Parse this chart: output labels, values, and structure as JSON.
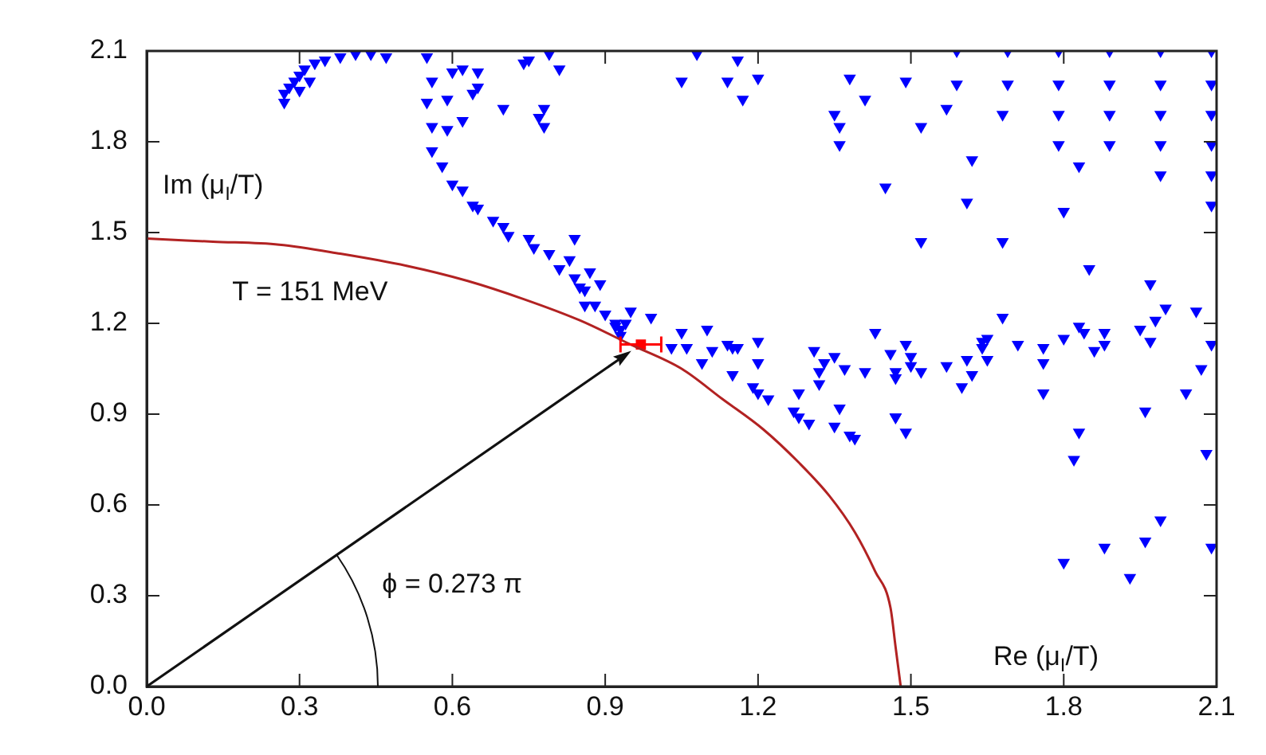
{
  "chart_data": {
    "type": "scatter",
    "xlabel": "Re (μ$_{I}$/T)",
    "ylabel": "Im (μ$_{I}$/T)",
    "annotations": [
      "T = 151 MeV",
      "ϕ = 0.273 π"
    ],
    "xlim": [
      0,
      2.1
    ],
    "ylim": [
      0,
      2.1
    ],
    "xticks": [
      {
        "value": 0,
        "label": "0.0"
      },
      0.3,
      0.6,
      0.9,
      1.2,
      1.5,
      1.8,
      2.1
    ],
    "yticks": [
      {
        "value": 0,
        "label": "0.0"
      },
      0.3,
      0.6,
      0.9,
      1.2,
      1.5,
      1.8,
      2.1
    ],
    "grid": false,
    "legend": false,
    "series": [
      {
        "type": "line",
        "color": "#b22222",
        "marker": "none",
        "x": [
          0,
          0.13,
          0.26,
          0.38,
          0.51,
          0.63,
          0.74,
          0.85,
          0.95,
          1.05,
          1.13,
          1.21,
          1.28,
          1.34,
          1.39,
          1.43,
          1.46,
          1.47,
          1.48
        ],
        "values": [
          1.48,
          1.47,
          1.46,
          1.43,
          1.39,
          1.34,
          1.28,
          1.21,
          1.13,
          1.05,
          0.95,
          0.85,
          0.74,
          0.63,
          0.51,
          0.38,
          0.26,
          0.13,
          0
        ]
      },
      {
        "type": "scatter",
        "color": "#0000ff",
        "marker": "triangle",
        "x": [
          0.27,
          0.28,
          0.29,
          0.3,
          0.31,
          0.33,
          0.35,
          0.38,
          0.41,
          0.44,
          0.47,
          0.27,
          0.3,
          0.32,
          0.55,
          0.56,
          0.55,
          0.56,
          0.56,
          0.58,
          0.6,
          0.62,
          0.64,
          0.65,
          0.68,
          0.7,
          0.71,
          0.75,
          0.76,
          0.79,
          0.81,
          0.84,
          0.86,
          0.88,
          0.9,
          0.92,
          0.93,
          0.6,
          0.65,
          0.62,
          0.59,
          0.64,
          0.7,
          0.59,
          0.74,
          0.65,
          0.62,
          0.75,
          0.79,
          0.81,
          0.78,
          0.78,
          0.77,
          1.05,
          1.08,
          1.14,
          1.16,
          1.17,
          1.2,
          1.38,
          1.41,
          1.35,
          1.36,
          1.36,
          1.45,
          1.49,
          0.84,
          0.83,
          0.87,
          0.89,
          0.85,
          0.86,
          0.95,
          0.99,
          1.59,
          1.69,
          1.79,
          1.89,
          1.99,
          2.09,
          1.59,
          1.69,
          1.79,
          1.89,
          1.99,
          2.09,
          1.68,
          1.79,
          1.89,
          1.99,
          2.09,
          1.57,
          1.52,
          1.79,
          1.89,
          1.99,
          2.09,
          1.62,
          1.83,
          1.99,
          2.09,
          1.61,
          1.8,
          2.09,
          1.52,
          1.68,
          1.85,
          1.97,
          2.0,
          2.06,
          1.68,
          1.49,
          1.5,
          1.5,
          1.47,
          1.52,
          1.57,
          1.61,
          1.62,
          1.6,
          1.64,
          1.65,
          1.64,
          1.65,
          1.71,
          1.76,
          1.76,
          1.76,
          1.8,
          1.83,
          1.84,
          1.88,
          1.86,
          1.88,
          1.95,
          1.98,
          1.97,
          2.09,
          2.07,
          2.04,
          1.96,
          1.49,
          1.47,
          1.83,
          1.82,
          2.08,
          1.99,
          1.96,
          1.88,
          1.8,
          1.93,
          2.09,
          0.92,
          0.94,
          0.93,
          1.03,
          1.05,
          1.06,
          1.1,
          1.09,
          1.11,
          1.14,
          1.15,
          1.16,
          1.2,
          1.15,
          1.2,
          1.19,
          1.2,
          1.22,
          1.28,
          1.27,
          1.28,
          1.3,
          1.31,
          1.32,
          1.32,
          1.33,
          1.35,
          1.37,
          1.36,
          1.35,
          1.38,
          1.39,
          1.41,
          1.43,
          1.46,
          1.47,
          1.47
        ],
        "values": [
          1.96,
          1.98,
          2.0,
          2.02,
          2.04,
          2.06,
          2.07,
          2.08,
          2.09,
          2.09,
          2.08,
          1.93,
          1.97,
          2.0,
          2.08,
          2.0,
          1.93,
          1.85,
          1.77,
          1.72,
          1.66,
          1.64,
          1.59,
          1.58,
          1.54,
          1.52,
          1.49,
          1.48,
          1.45,
          1.43,
          1.38,
          1.35,
          1.31,
          1.26,
          1.23,
          1.19,
          1.16,
          2.03,
          1.98,
          1.87,
          1.94,
          1.96,
          1.91,
          1.84,
          2.06,
          2.03,
          2.04,
          2.07,
          2.09,
          2.04,
          1.91,
          1.85,
          1.88,
          2.0,
          2.09,
          2.0,
          2.07,
          1.94,
          2.01,
          2.01,
          1.94,
          1.89,
          1.85,
          1.79,
          1.65,
          2.0,
          1.48,
          1.41,
          1.37,
          1.33,
          1.32,
          1.26,
          1.24,
          1.22,
          2.1,
          2.1,
          2.1,
          2.1,
          2.1,
          2.1,
          1.99,
          1.99,
          1.99,
          1.99,
          1.99,
          1.99,
          1.89,
          1.89,
          1.89,
          1.89,
          1.89,
          1.91,
          1.85,
          1.79,
          1.79,
          1.79,
          1.79,
          1.74,
          1.72,
          1.69,
          1.69,
          1.6,
          1.57,
          1.59,
          1.47,
          1.47,
          1.38,
          1.33,
          1.25,
          1.24,
          1.22,
          1.13,
          1.09,
          1.06,
          1.02,
          1.04,
          1.06,
          1.08,
          1.03,
          0.99,
          1.14,
          1.15,
          1.12,
          1.08,
          1.13,
          1.12,
          1.07,
          0.97,
          1.15,
          1.19,
          1.17,
          1.17,
          1.11,
          1.13,
          1.18,
          1.21,
          1.14,
          1.13,
          1.05,
          0.97,
          0.91,
          0.84,
          0.89,
          0.84,
          0.75,
          0.77,
          0.55,
          0.48,
          0.46,
          0.41,
          0.36,
          0.46,
          1.2,
          1.2,
          1.18,
          1.12,
          1.17,
          1.12,
          1.18,
          1.07,
          1.11,
          1.13,
          1.12,
          1.12,
          1.14,
          1.03,
          1.07,
          0.99,
          0.97,
          0.95,
          0.97,
          0.91,
          0.89,
          0.87,
          1.11,
          1.04,
          1.0,
          1.07,
          1.09,
          1.05,
          0.92,
          0.86,
          0.83,
          0.82,
          1.04,
          1.17,
          1.1,
          0.89,
          1.04
        ]
      },
      {
        "type": "scatter",
        "color": "#ff0000",
        "marker": "square",
        "x": [
          0.97
        ],
        "values": [
          1.13
        ],
        "xerrors": [
          0.04
        ]
      }
    ]
  }
}
